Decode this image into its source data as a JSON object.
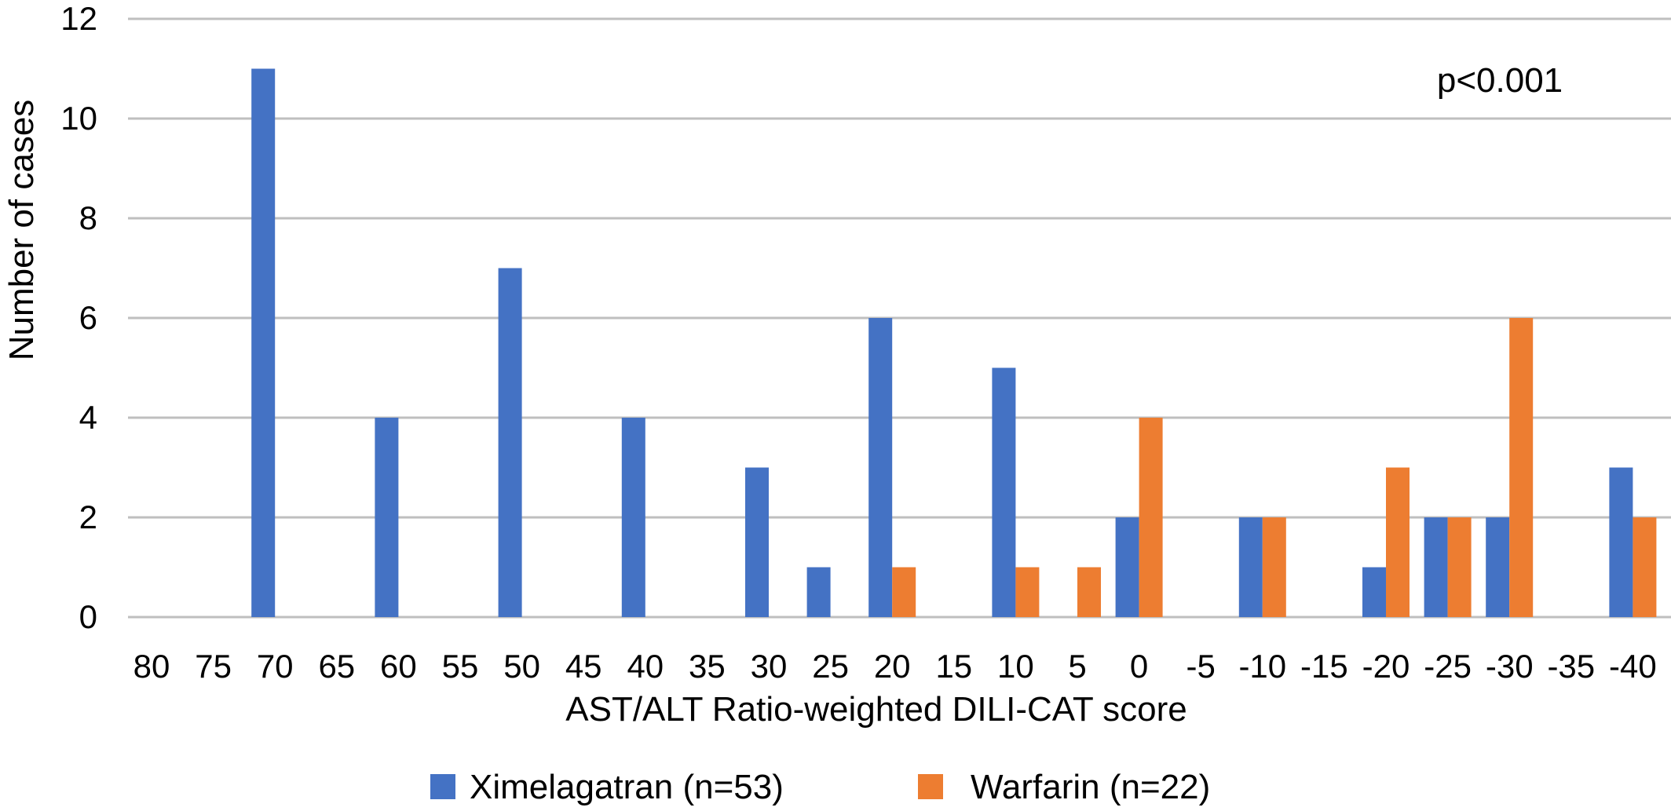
{
  "chart_data": {
    "type": "bar",
    "categories": [
      "80",
      "75",
      "70",
      "65",
      "60",
      "55",
      "50",
      "45",
      "40",
      "35",
      "30",
      "25",
      "20",
      "15",
      "10",
      "5",
      "0",
      "-5",
      "-10",
      "-15",
      "-20",
      "-25",
      "-30",
      "-35",
      "-40"
    ],
    "series": [
      {
        "name": "Ximelagatran (n=53)",
        "color": "#4472c4",
        "values": [
          0,
          0,
          11,
          0,
          4,
          0,
          7,
          0,
          4,
          0,
          3,
          1,
          6,
          0,
          5,
          0,
          2,
          0,
          2,
          0,
          1,
          2,
          2,
          0,
          3
        ]
      },
      {
        "name": "Warfarin (n=22)",
        "color": "#ed7d31",
        "values": [
          0,
          0,
          0,
          0,
          0,
          0,
          0,
          0,
          0,
          0,
          0,
          0,
          1,
          0,
          1,
          1,
          4,
          0,
          2,
          0,
          3,
          2,
          6,
          0,
          2
        ]
      }
    ],
    "xlabel": "AST/ALT Ratio-weighted DILI-CAT score",
    "ylabel": "Number of cases",
    "ylim": [
      0,
      12
    ],
    "yticks": [
      0,
      2,
      4,
      6,
      8,
      10,
      12
    ],
    "grid": true,
    "legend_position": "bottom",
    "annotation": "p<0.001"
  }
}
